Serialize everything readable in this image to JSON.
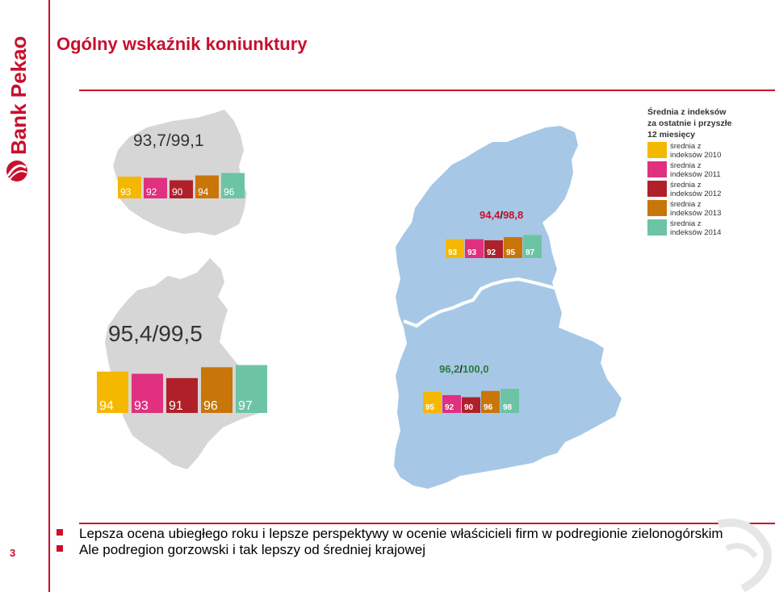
{
  "brand": {
    "name": "Bank Pekao",
    "accent": "#c8102e"
  },
  "page_number": "3",
  "title": "Ogólny wskaźnik koniunktury",
  "legend": {
    "title_lines": [
      "Średnia z indeksów",
      "za ostatnie i przyszłe",
      "12 miesięcy"
    ],
    "items": [
      {
        "label_lines": [
          "średnia z",
          "indeksów 2010"
        ],
        "color": "#f5b800"
      },
      {
        "label_lines": [
          "średnia z",
          "indeksów 2011"
        ],
        "color": "#e0307f"
      },
      {
        "label_lines": [
          "średnia z",
          "indeksów 2012"
        ],
        "color": "#b0202a"
      },
      {
        "label_lines": [
          "średnia z",
          "indeksów 2013"
        ],
        "color": "#c8760a"
      },
      {
        "label_lines": [
          "średnia z",
          "indeksów 2014"
        ],
        "color": "#6cc4a4"
      }
    ]
  },
  "chart_data": [
    {
      "type": "bar",
      "region": "Polska",
      "title": "93,7/99,1",
      "categories": [
        "2010",
        "2011",
        "2012",
        "2013",
        "2014"
      ],
      "values": [
        93,
        92,
        90,
        94,
        96
      ],
      "value_labels": [
        "93",
        "92",
        "90",
        "94",
        "96"
      ],
      "colors": [
        "#f5b800",
        "#e0307f",
        "#b0202a",
        "#c8760a",
        "#6cc4a4"
      ]
    },
    {
      "type": "bar",
      "region": "Lubuskie",
      "title": "95,4/99,5",
      "categories": [
        "2010",
        "2011",
        "2012",
        "2013",
        "2014"
      ],
      "values": [
        94,
        93,
        91,
        96,
        97
      ],
      "value_labels": [
        "94",
        "93",
        "91",
        "96",
        "97"
      ],
      "colors": [
        "#f5b800",
        "#e0307f",
        "#b0202a",
        "#c8760a",
        "#6cc4a4"
      ]
    },
    {
      "type": "bar",
      "region": "podregion gorzowski",
      "title_parts": [
        "94,4",
        "/",
        "98,8"
      ],
      "categories": [
        "2010",
        "2011",
        "2012",
        "2013",
        "2014"
      ],
      "values": [
        93,
        93,
        92,
        95,
        97
      ],
      "value_labels": [
        "93",
        "93",
        "92",
        "95",
        "97"
      ],
      "colors": [
        "#f5b800",
        "#e0307f",
        "#b0202a",
        "#c8760a",
        "#6cc4a4"
      ]
    },
    {
      "type": "bar",
      "region": "podregion zielonogórski",
      "title_parts": [
        "96,2",
        "/",
        "100,0"
      ],
      "categories": [
        "2010",
        "2011",
        "2012",
        "2013",
        "2014"
      ],
      "values": [
        95,
        92,
        90,
        96,
        98
      ],
      "value_labels": [
        "95",
        "92",
        "90",
        "96",
        "98"
      ],
      "colors": [
        "#f5b800",
        "#e0307f",
        "#b0202a",
        "#c8760a",
        "#6cc4a4"
      ]
    }
  ],
  "bullets": [
    "Lepsza ocena ubiegłego roku i lepsze perspektywy w ocenie właścicieli firm w podregionie zielonogórskim",
    "Ale podregion gorzowski i tak lepszy od średniej krajowej"
  ],
  "map_colors": {
    "gray": "#d6d6d6",
    "blue": "#a6c8e6"
  }
}
